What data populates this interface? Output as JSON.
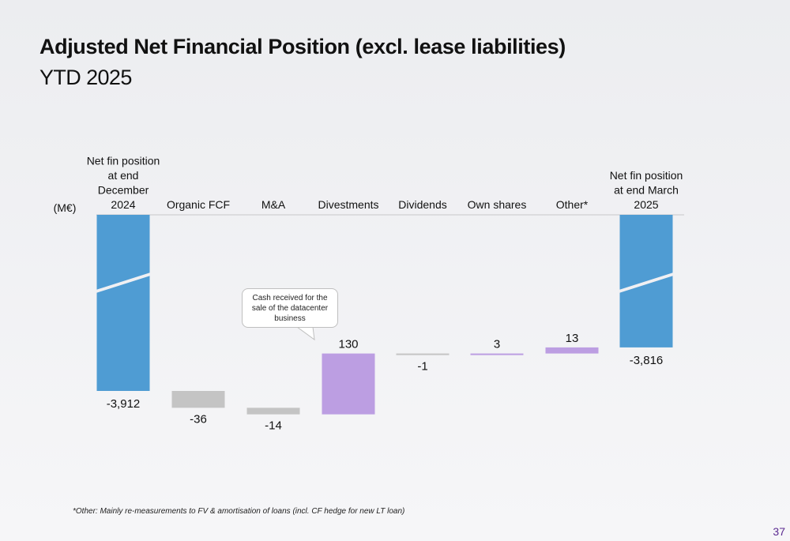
{
  "page": {
    "title": "Adjusted Net Financial Position (excl. lease liabilities)",
    "subtitle": "YTD 2025",
    "footnote": "*Other: Mainly re-measurements to FV & amortisation of loans (incl. CF hedge for new LT loan)",
    "page_number": "37"
  },
  "callout": {
    "text": "Cash received for the sale of the datacenter business"
  },
  "chart_data": {
    "type": "bar",
    "subtype": "waterfall",
    "unit_label": "(M€)",
    "categories": [
      "Net fin position at end December 2024",
      "Organic FCF",
      "M&A",
      "Divestments",
      "Dividends",
      "Own shares",
      "Other*",
      "Net fin position at end March 2025"
    ],
    "category_lines": [
      [
        "Net fin position",
        "at end",
        "December",
        "2024"
      ],
      [
        "Organic FCF"
      ],
      [
        "M&A"
      ],
      [
        "Divestments"
      ],
      [
        "Dividends"
      ],
      [
        "Own shares"
      ],
      [
        "Other*"
      ],
      [
        "Net fin position",
        "at end March",
        "2025"
      ]
    ],
    "values": [
      -3912,
      -36,
      -14,
      130,
      -1,
      3,
      13,
      -3816
    ],
    "value_labels": [
      "-3,912",
      "-36",
      "-14",
      "130",
      "-1",
      "3",
      "13",
      "-3,816"
    ],
    "bar_kinds": [
      "total",
      "delta",
      "delta",
      "delta",
      "delta",
      "delta",
      "delta",
      "total"
    ],
    "axis_break": true,
    "colors": {
      "total": "#4f9cd3",
      "negative": "#c4c4c4",
      "positive": "#bc9ee2",
      "axis": "#c8c8c8"
    },
    "legend": "none",
    "grid": false
  }
}
